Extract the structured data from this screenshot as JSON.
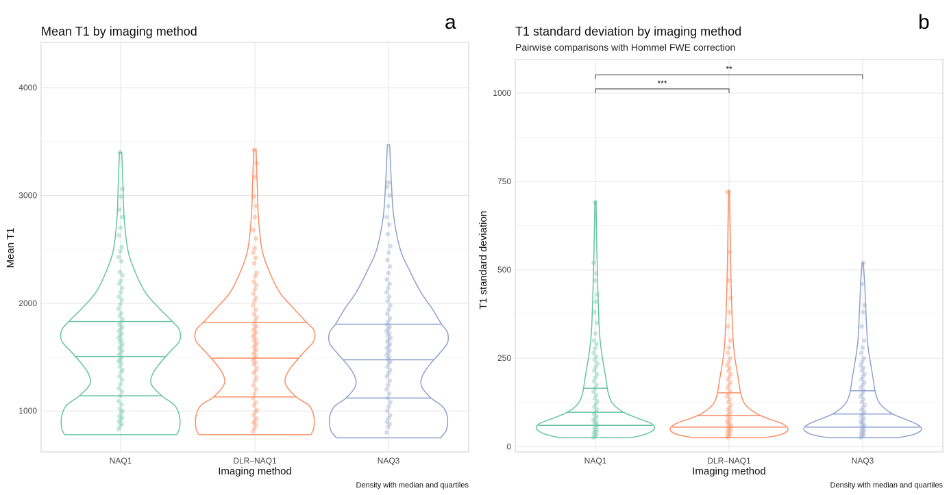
{
  "colors": {
    "NAQ1": "#66c2a5",
    "DLR-NAQ1": "#fc8d62",
    "NAQ3": "#8da0cb"
  },
  "chart_data": [
    {
      "panel": "a",
      "type": "violin",
      "title": "Mean T1 by imaging method",
      "subtitle": "",
      "xlabel": "Imaging method",
      "ylabel": "Mean T1",
      "caption": "Density with median and quartiles",
      "categories": [
        "NAQ1",
        "DLR–NAQ1",
        "NAQ3"
      ],
      "ylim": [
        620,
        4420
      ],
      "yticks": [
        1000,
        2000,
        3000,
        4000
      ],
      "grid": true,
      "series": [
        {
          "name": "NAQ1",
          "min": 780,
          "max": 3400,
          "q1": 1140,
          "median": 1505,
          "q3": 1830,
          "density": [
            [
              780,
              0.95
            ],
            [
              840,
              1.0
            ],
            [
              950,
              1.0
            ],
            [
              1050,
              0.92
            ],
            [
              1140,
              0.7
            ],
            [
              1250,
              0.52
            ],
            [
              1350,
              0.55
            ],
            [
              1450,
              0.68
            ],
            [
              1550,
              0.84
            ],
            [
              1650,
              1.0
            ],
            [
              1750,
              1.0
            ],
            [
              1830,
              0.88
            ],
            [
              1950,
              0.66
            ],
            [
              2100,
              0.42
            ],
            [
              2300,
              0.24
            ],
            [
              2500,
              0.12
            ],
            [
              2800,
              0.06
            ],
            [
              3100,
              0.04
            ],
            [
              3400,
              0.02
            ]
          ],
          "points": [
            830,
            860,
            880,
            900,
            920,
            940,
            950,
            980,
            1000,
            1020,
            1060,
            1090,
            1140,
            1180,
            1210,
            1250,
            1290,
            1320,
            1360,
            1380,
            1410,
            1440,
            1460,
            1480,
            1500,
            1520,
            1540,
            1560,
            1580,
            1600,
            1620,
            1640,
            1660,
            1680,
            1700,
            1720,
            1740,
            1760,
            1780,
            1800,
            1820,
            1850,
            1880,
            1910,
            1950,
            1990,
            2030,
            2060,
            2100,
            2140,
            2180,
            2210,
            2260,
            2290,
            2390,
            2430,
            2480,
            2520,
            2630,
            2700,
            2800,
            2870,
            2990,
            3060,
            3400
          ]
        },
        {
          "name": "DLR–NAQ1",
          "min": 780,
          "max": 3430,
          "q1": 1130,
          "median": 1490,
          "q3": 1820,
          "density": [
            [
              780,
              0.95
            ],
            [
              840,
              1.0
            ],
            [
              950,
              1.0
            ],
            [
              1050,
              0.92
            ],
            [
              1130,
              0.7
            ],
            [
              1250,
              0.52
            ],
            [
              1350,
              0.55
            ],
            [
              1450,
              0.68
            ],
            [
              1550,
              0.84
            ],
            [
              1650,
              1.0
            ],
            [
              1750,
              1.0
            ],
            [
              1820,
              0.88
            ],
            [
              1950,
              0.66
            ],
            [
              2100,
              0.42
            ],
            [
              2300,
              0.24
            ],
            [
              2500,
              0.12
            ],
            [
              2800,
              0.06
            ],
            [
              3100,
              0.04
            ],
            [
              3430,
              0.02
            ]
          ],
          "points": [
            810,
            840,
            870,
            890,
            910,
            930,
            960,
            990,
            1010,
            1050,
            1080,
            1120,
            1160,
            1200,
            1240,
            1280,
            1310,
            1350,
            1370,
            1400,
            1430,
            1450,
            1470,
            1490,
            1510,
            1530,
            1550,
            1570,
            1590,
            1610,
            1630,
            1650,
            1670,
            1690,
            1710,
            1730,
            1750,
            1770,
            1790,
            1810,
            1840,
            1870,
            1900,
            1940,
            1980,
            2020,
            2050,
            2090,
            2130,
            2170,
            2200,
            2250,
            2280,
            2370,
            2420,
            2470,
            2510,
            2600,
            2680,
            2800,
            2900,
            2990,
            3170,
            3300,
            3420
          ]
        },
        {
          "name": "NAQ3",
          "min": 750,
          "max": 3470,
          "q1": 1120,
          "median": 1475,
          "q3": 1805,
          "density": [
            [
              750,
              0.88
            ],
            [
              820,
              0.98
            ],
            [
              940,
              1.0
            ],
            [
              1040,
              0.92
            ],
            [
              1120,
              0.72
            ],
            [
              1230,
              0.56
            ],
            [
              1330,
              0.58
            ],
            [
              1430,
              0.7
            ],
            [
              1530,
              0.86
            ],
            [
              1630,
              1.0
            ],
            [
              1730,
              1.0
            ],
            [
              1805,
              0.9
            ],
            [
              1950,
              0.74
            ],
            [
              2100,
              0.55
            ],
            [
              2300,
              0.36
            ],
            [
              2500,
              0.2
            ],
            [
              2800,
              0.09
            ],
            [
              3100,
              0.05
            ],
            [
              3470,
              0.02
            ]
          ],
          "points": [
            800,
            850,
            880,
            900,
            930,
            960,
            1000,
            1040,
            1080,
            1120,
            1160,
            1200,
            1240,
            1280,
            1320,
            1350,
            1380,
            1410,
            1440,
            1460,
            1480,
            1500,
            1520,
            1540,
            1560,
            1580,
            1600,
            1620,
            1640,
            1660,
            1680,
            1700,
            1720,
            1740,
            1760,
            1780,
            1800,
            1830,
            1860,
            1900,
            1940,
            1980,
            2020,
            2060,
            2100,
            2140,
            2180,
            2220,
            2280,
            2340,
            2400,
            2470,
            2530,
            2640,
            2730,
            2800,
            2900,
            3000,
            3080,
            3120
          ]
        }
      ]
    },
    {
      "panel": "b",
      "type": "violin",
      "title": "T1 standard deviation by imaging method",
      "subtitle": "Pairwise comparisons with Hommel FWE correction",
      "xlabel": "Imaging method",
      "ylabel": "T1 standard deviation",
      "caption": "Density with median and quartiles",
      "categories": [
        "NAQ1",
        "DLR–NAQ1",
        "NAQ3"
      ],
      "ylim": [
        -15,
        1095
      ],
      "yticks": [
        0,
        250,
        500,
        750,
        1000
      ],
      "grid": true,
      "comparisons": [
        {
          "from": "NAQ1",
          "to": "DLR–NAQ1",
          "y": 1012,
          "label": "***"
        },
        {
          "from": "NAQ1",
          "to": "NAQ3",
          "y": 1052,
          "label": "**"
        }
      ],
      "series": [
        {
          "name": "NAQ1",
          "min": 25,
          "max": 695,
          "q1": 60,
          "median": 97,
          "q3": 165,
          "density": [
            [
              25,
              0.6
            ],
            [
              35,
              0.85
            ],
            [
              50,
              1.0
            ],
            [
              65,
              0.95
            ],
            [
              80,
              0.72
            ],
            [
              97,
              0.48
            ],
            [
              120,
              0.3
            ],
            [
              150,
              0.22
            ],
            [
              200,
              0.17
            ],
            [
              250,
              0.12
            ],
            [
              300,
              0.08
            ],
            [
              350,
              0.06
            ],
            [
              450,
              0.04
            ],
            [
              550,
              0.025
            ],
            [
              695,
              0.01
            ]
          ],
          "points": [
            26,
            30,
            34,
            38,
            42,
            46,
            50,
            55,
            60,
            65,
            70,
            75,
            80,
            86,
            92,
            98,
            105,
            112,
            120,
            128,
            136,
            145,
            155,
            165,
            175,
            185,
            195,
            205,
            215,
            225,
            235,
            245,
            255,
            265,
            278,
            290,
            300,
            320,
            350,
            380,
            410,
            430,
            470,
            490,
            520,
            690
          ]
        },
        {
          "name": "DLR–NAQ1",
          "min": 25,
          "max": 725,
          "q1": 55,
          "median": 88,
          "q3": 152,
          "density": [
            [
              25,
              0.6
            ],
            [
              35,
              0.9
            ],
            [
              50,
              1.0
            ],
            [
              65,
              0.9
            ],
            [
              80,
              0.65
            ],
            [
              95,
              0.45
            ],
            [
              120,
              0.27
            ],
            [
              150,
              0.2
            ],
            [
              200,
              0.15
            ],
            [
              250,
              0.1
            ],
            [
              300,
              0.07
            ],
            [
              400,
              0.045
            ],
            [
              500,
              0.03
            ],
            [
              600,
              0.02
            ],
            [
              725,
              0.01
            ]
          ],
          "points": [
            26,
            30,
            34,
            38,
            42,
            46,
            50,
            54,
            58,
            62,
            66,
            70,
            75,
            80,
            86,
            92,
            98,
            104,
            110,
            118,
            126,
            134,
            142,
            150,
            158,
            166,
            174,
            182,
            190,
            198,
            206,
            214,
            222,
            230,
            240,
            250,
            265,
            280,
            300,
            340,
            380,
            420,
            470,
            550,
            720
          ]
        },
        {
          "name": "NAQ3",
          "min": 25,
          "max": 520,
          "q1": 55,
          "median": 92,
          "q3": 158,
          "density": [
            [
              25,
              0.6
            ],
            [
              35,
              0.88
            ],
            [
              50,
              1.0
            ],
            [
              65,
              0.9
            ],
            [
              80,
              0.68
            ],
            [
              95,
              0.48
            ],
            [
              120,
              0.3
            ],
            [
              150,
              0.22
            ],
            [
              200,
              0.17
            ],
            [
              250,
              0.12
            ],
            [
              300,
              0.08
            ],
            [
              400,
              0.05
            ],
            [
              460,
              0.035
            ],
            [
              520,
              0.01
            ]
          ],
          "points": [
            26,
            30,
            34,
            38,
            42,
            46,
            50,
            54,
            58,
            62,
            66,
            70,
            75,
            80,
            86,
            92,
            98,
            104,
            110,
            118,
            126,
            134,
            142,
            150,
            158,
            166,
            174,
            182,
            190,
            198,
            206,
            214,
            222,
            230,
            240,
            250,
            265,
            280,
            300,
            340,
            380,
            400,
            460,
            520
          ]
        }
      ]
    }
  ]
}
